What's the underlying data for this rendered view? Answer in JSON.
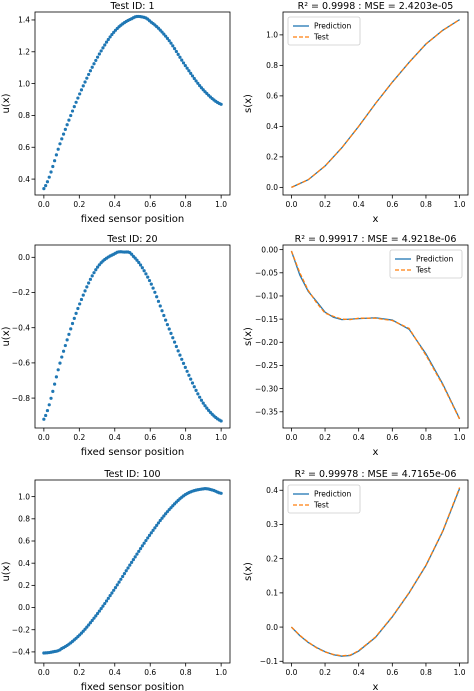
{
  "colors": {
    "blue": "#1f77b4",
    "orange": "#ff7f0e"
  },
  "chart_data": [
    {
      "type": "scatter",
      "title": "Test ID: 1",
      "xlabel": "fixed sensor position",
      "ylabel": "u(x)",
      "xlim": [
        -0.05,
        1.05
      ],
      "ylim": [
        0.3,
        1.45
      ],
      "xticks": [
        "0.0",
        "0.2",
        "0.4",
        "0.6",
        "0.8",
        "1.0"
      ],
      "yticks": [
        "0.4",
        "0.6",
        "0.8",
        "1.0",
        "1.2",
        "1.4"
      ],
      "yticks_values": [
        0.4,
        0.6,
        0.8,
        1.0,
        1.2,
        1.4
      ],
      "x": [
        0.0,
        0.1,
        0.2,
        0.3,
        0.4,
        0.5,
        0.55,
        0.6,
        0.7,
        0.8,
        0.9,
        1.0
      ],
      "y": [
        0.34,
        0.65,
        0.93,
        1.16,
        1.33,
        1.41,
        1.42,
        1.39,
        1.28,
        1.11,
        0.96,
        0.87
      ]
    },
    {
      "type": "line",
      "title": "R² = 0.9998 : MSE = 2.4203e-05",
      "xlabel": "x",
      "ylabel": "s(x)",
      "xlim": [
        -0.05,
        1.05
      ],
      "ylim": [
        -0.05,
        1.15
      ],
      "xticks": [
        "0.0",
        "0.2",
        "0.4",
        "0.6",
        "0.8",
        "1.0"
      ],
      "yticks": [
        "0.0",
        "0.2",
        "0.4",
        "0.6",
        "0.8",
        "1.0"
      ],
      "yticks_values": [
        0.0,
        0.2,
        0.4,
        0.6,
        0.8,
        1.0
      ],
      "legend": "top-left",
      "x": [
        0.0,
        0.1,
        0.2,
        0.3,
        0.4,
        0.5,
        0.6,
        0.7,
        0.8,
        0.9,
        1.0
      ],
      "series": [
        {
          "name": "Prediction",
          "values": [
            0.0,
            0.05,
            0.14,
            0.26,
            0.4,
            0.55,
            0.69,
            0.82,
            0.94,
            1.03,
            1.1
          ]
        },
        {
          "name": "Test",
          "values": [
            0.0,
            0.05,
            0.14,
            0.26,
            0.4,
            0.55,
            0.69,
            0.82,
            0.94,
            1.03,
            1.1
          ]
        }
      ]
    },
    {
      "type": "scatter",
      "title": "Test ID: 20",
      "xlabel": "fixed sensor position",
      "ylabel": "u(x)",
      "xlim": [
        -0.05,
        1.05
      ],
      "ylim": [
        -0.97,
        0.07
      ],
      "xticks": [
        "0.0",
        "0.2",
        "0.4",
        "0.6",
        "0.8",
        "1.0"
      ],
      "yticks": [
        "−0.8",
        "−0.6",
        "−0.4",
        "−0.2",
        "0.0"
      ],
      "yticks_values": [
        -0.8,
        -0.6,
        -0.4,
        -0.2,
        0.0
      ],
      "x": [
        0.0,
        0.1,
        0.2,
        0.3,
        0.4,
        0.45,
        0.5,
        0.6,
        0.7,
        0.8,
        0.9,
        1.0
      ],
      "y": [
        -0.92,
        -0.57,
        -0.27,
        -0.06,
        0.02,
        0.03,
        0.01,
        -0.14,
        -0.39,
        -0.63,
        -0.83,
        -0.93
      ]
    },
    {
      "type": "line",
      "title": "R² = 0.99917 : MSE = 4.9218e-06",
      "xlabel": "x",
      "ylabel": "s(x)",
      "xlim": [
        -0.05,
        1.05
      ],
      "ylim": [
        -0.385,
        0.01
      ],
      "xticks": [
        "0.0",
        "0.2",
        "0.4",
        "0.6",
        "0.8",
        "1.0"
      ],
      "yticks": [
        "0.00",
        "−0.05",
        "−0.10",
        "−0.15",
        "−0.20",
        "−0.25",
        "−0.30",
        "−0.35"
      ],
      "yticks_values": [
        0.0,
        -0.05,
        -0.1,
        -0.15,
        -0.2,
        -0.25,
        -0.3,
        -0.35
      ],
      "legend": "top-right",
      "x": [
        0.0,
        0.05,
        0.1,
        0.15,
        0.2,
        0.25,
        0.3,
        0.35,
        0.4,
        0.5,
        0.6,
        0.7,
        0.8,
        0.9,
        1.0
      ],
      "series": [
        {
          "name": "Prediction",
          "values": [
            -0.003,
            -0.055,
            -0.09,
            -0.112,
            -0.135,
            -0.146,
            -0.151,
            -0.15,
            -0.149,
            -0.147,
            -0.152,
            -0.172,
            -0.225,
            -0.29,
            -0.365
          ]
        },
        {
          "name": "Test",
          "values": [
            -0.003,
            -0.05,
            -0.088,
            -0.115,
            -0.137,
            -0.144,
            -0.15,
            -0.151,
            -0.148,
            -0.148,
            -0.153,
            -0.17,
            -0.228,
            -0.292,
            -0.366
          ]
        }
      ]
    },
    {
      "type": "scatter",
      "title": "Test ID: 100",
      "xlabel": "fixed sensor position",
      "ylabel": "u(x)",
      "xlim": [
        -0.05,
        1.05
      ],
      "ylim": [
        -0.5,
        1.15
      ],
      "xticks": [
        "0.0",
        "0.2",
        "0.4",
        "0.6",
        "0.8",
        "1.0"
      ],
      "yticks": [
        "−0.4",
        "−0.2",
        "0.0",
        "0.2",
        "0.4",
        "0.6",
        "0.8",
        "1.0"
      ],
      "yticks_values": [
        -0.4,
        -0.2,
        0.0,
        0.2,
        0.4,
        0.6,
        0.8,
        1.0
      ],
      "x": [
        0.0,
        0.05,
        0.1,
        0.2,
        0.3,
        0.4,
        0.5,
        0.6,
        0.7,
        0.8,
        0.9,
        0.95,
        1.0
      ],
      "y": [
        -0.41,
        -0.4,
        -0.37,
        -0.25,
        -0.06,
        0.17,
        0.42,
        0.66,
        0.87,
        1.02,
        1.07,
        1.06,
        1.03
      ]
    },
    {
      "type": "line",
      "title": "R² = 0.99978 : MSE = 4.7165e-06",
      "xlabel": "x",
      "ylabel": "s(x)",
      "xlim": [
        -0.05,
        1.05
      ],
      "ylim": [
        -0.105,
        0.43
      ],
      "xticks": [
        "0.0",
        "0.2",
        "0.4",
        "0.6",
        "0.8",
        "1.0"
      ],
      "yticks": [
        "−0.1",
        "0.0",
        "0.1",
        "0.2",
        "0.3",
        "0.4"
      ],
      "yticks_values": [
        -0.1,
        0.0,
        0.1,
        0.2,
        0.3,
        0.4
      ],
      "legend": "top-left",
      "x": [
        0.0,
        0.05,
        0.1,
        0.15,
        0.2,
        0.25,
        0.3,
        0.35,
        0.4,
        0.5,
        0.6,
        0.7,
        0.8,
        0.9,
        1.0
      ],
      "series": [
        {
          "name": "Prediction",
          "values": [
            0.0,
            -0.025,
            -0.045,
            -0.06,
            -0.072,
            -0.081,
            -0.085,
            -0.083,
            -0.07,
            -0.03,
            0.03,
            0.1,
            0.18,
            0.28,
            0.405
          ]
        },
        {
          "name": "Test",
          "values": [
            0.0,
            -0.024,
            -0.044,
            -0.061,
            -0.073,
            -0.08,
            -0.084,
            -0.082,
            -0.069,
            -0.029,
            0.031,
            0.101,
            0.181,
            0.281,
            0.408
          ]
        }
      ]
    }
  ]
}
